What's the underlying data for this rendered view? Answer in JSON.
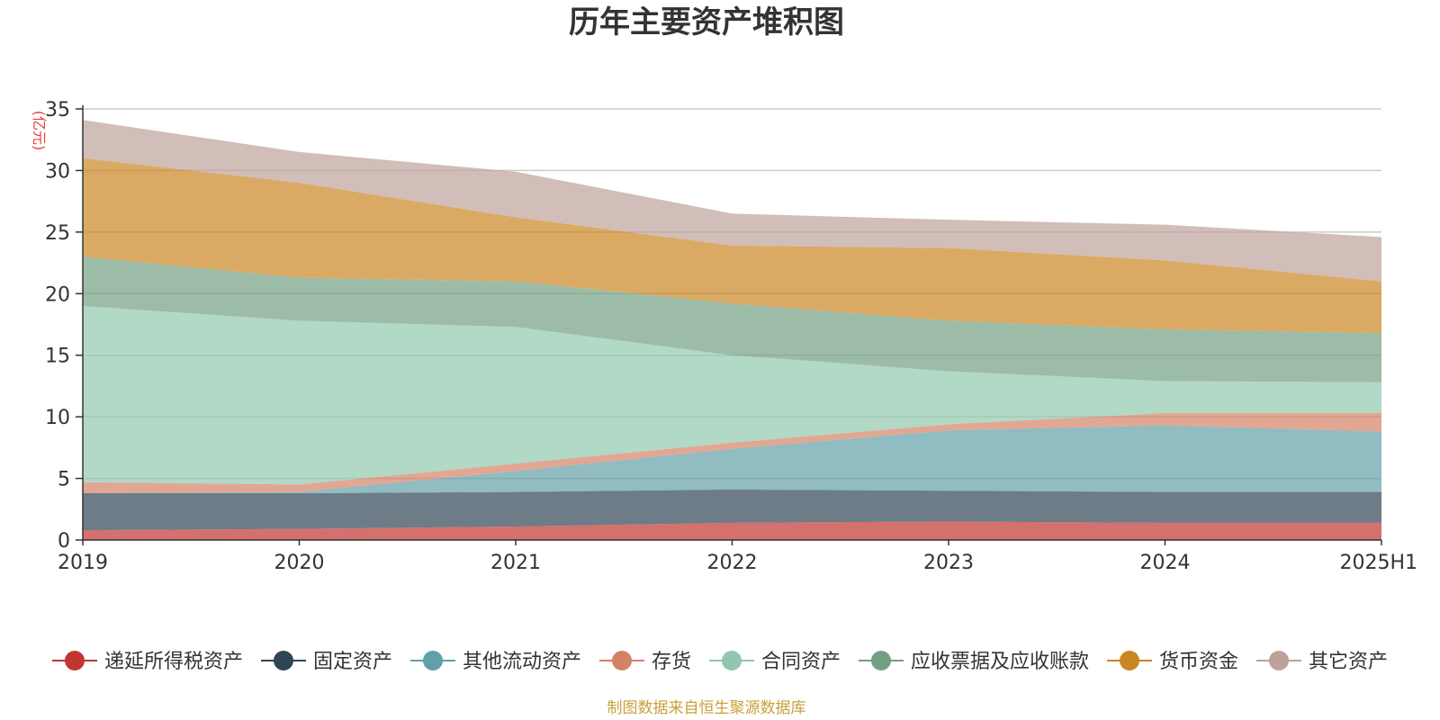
{
  "chart_data": {
    "type": "area",
    "stacked": true,
    "title": "历年主要资产堆积图",
    "unit_label": "(亿元)",
    "categories": [
      "2019",
      "2020",
      "2021",
      "2022",
      "2023",
      "2024",
      "2025H1"
    ],
    "ylim": [
      0,
      35
    ],
    "y_ticks": [
      0,
      5,
      10,
      15,
      20,
      25,
      30,
      35
    ],
    "grid": true,
    "legend_position": "bottom",
    "series": [
      {
        "name": "递延所得税资产",
        "color": "#c23531",
        "values": [
          0.8,
          0.9,
          1.1,
          1.4,
          1.5,
          1.4,
          1.4
        ]
      },
      {
        "name": "固定资产",
        "color": "#2f4554",
        "values": [
          3.0,
          2.9,
          2.8,
          2.7,
          2.5,
          2.5,
          2.5
        ]
      },
      {
        "name": "其他流动资产",
        "color": "#61a0a8",
        "values": [
          0.0,
          0.1,
          1.7,
          3.3,
          4.9,
          5.4,
          4.9
        ]
      },
      {
        "name": "存货",
        "color": "#d48265",
        "values": [
          0.9,
          0.6,
          0.6,
          0.5,
          0.5,
          1.0,
          1.5
        ]
      },
      {
        "name": "合同资产",
        "color": "#91c7ae",
        "values": [
          14.3,
          13.3,
          11.1,
          7.1,
          4.3,
          2.6,
          2.5
        ]
      },
      {
        "name": "应收票据及应收账款",
        "color": "#749f83",
        "values": [
          4.0,
          3.5,
          3.7,
          4.2,
          4.1,
          4.2,
          4.0
        ]
      },
      {
        "name": "货币资金",
        "color": "#ca8622",
        "values": [
          8.0,
          7.7,
          5.2,
          4.7,
          5.9,
          5.6,
          4.2
        ]
      },
      {
        "name": "其它资产",
        "color": "#bda29a",
        "values": [
          3.1,
          2.5,
          3.7,
          2.6,
          2.3,
          2.9,
          3.6
        ]
      }
    ]
  },
  "source_note": "制图数据来自恒生聚源数据库"
}
